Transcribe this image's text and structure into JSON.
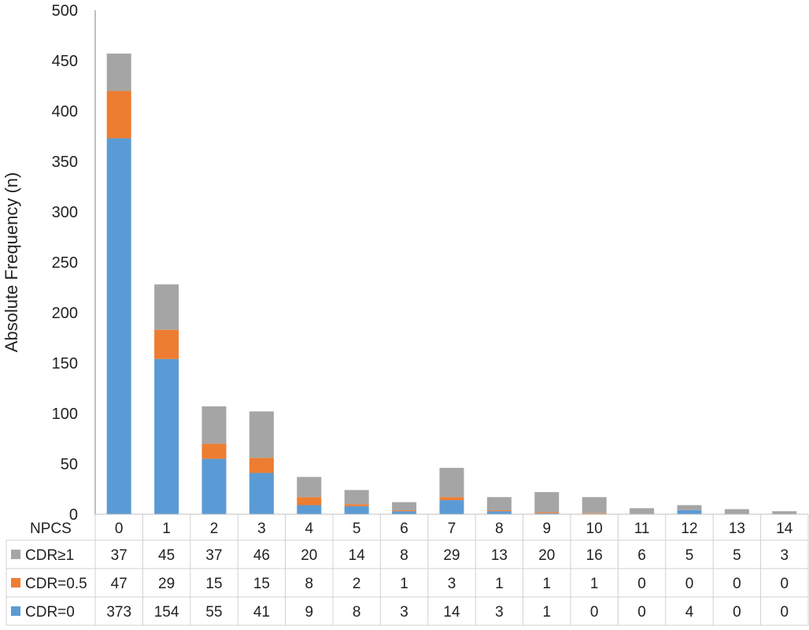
{
  "chart_data": {
    "type": "bar",
    "stacked": true,
    "ylabel": "Absolute Frequency (n)",
    "ylim": [
      0,
      500
    ],
    "yticks": [
      0,
      50,
      100,
      150,
      200,
      250,
      300,
      350,
      400,
      450,
      500
    ],
    "table_header": "NPCS",
    "categories": [
      "0",
      "1",
      "2",
      "3",
      "4",
      "5",
      "6",
      "7",
      "8",
      "9",
      "10",
      "11",
      "12",
      "13",
      "14"
    ],
    "series": [
      {
        "name": "CDR=0",
        "color": "#5b9bd5",
        "values": [
          373,
          154,
          55,
          41,
          9,
          8,
          3,
          14,
          3,
          1,
          0,
          0,
          4,
          0,
          0
        ]
      },
      {
        "name": "CDR=0.5",
        "color": "#ed7d31",
        "values": [
          47,
          29,
          15,
          15,
          8,
          2,
          1,
          3,
          1,
          1,
          1,
          0,
          0,
          0,
          0
        ]
      },
      {
        "name": "CDR≥1",
        "color": "#a5a5a5",
        "values": [
          37,
          45,
          37,
          46,
          20,
          14,
          8,
          29,
          13,
          20,
          16,
          6,
          5,
          5,
          3
        ]
      }
    ],
    "table_row_order": [
      "CDR≥1",
      "CDR=0.5",
      "CDR=0"
    ],
    "grid": false
  }
}
